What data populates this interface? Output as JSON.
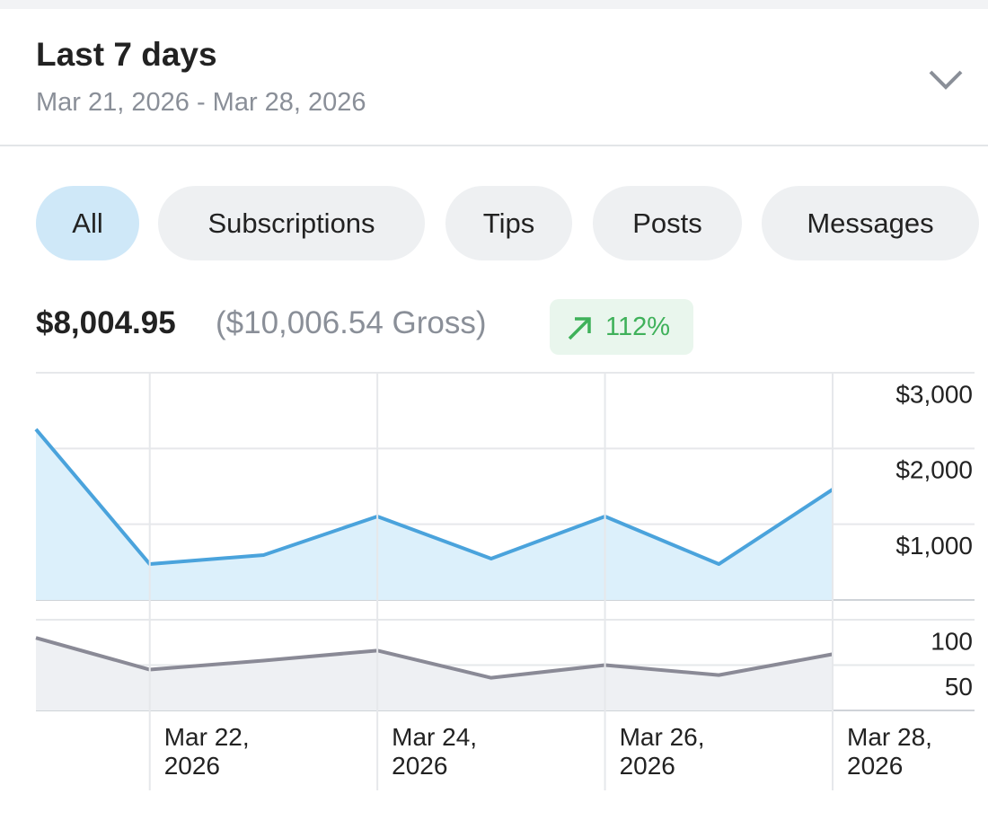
{
  "header": {
    "title": "Last 7 days",
    "date_range": "Mar 21, 2026 - Mar 28, 2026"
  },
  "tabs": [
    "All",
    "Subscriptions",
    "Tips",
    "Posts",
    "Messages"
  ],
  "active_tab": 0,
  "summary": {
    "net": "$8,004.95",
    "gross": "($10,006.54 Gross)",
    "change": "112%"
  },
  "chart_data": [
    {
      "type": "area",
      "color": "#4aa3dc",
      "values": [
        2254,
        474,
        593,
        1103,
        546,
        1103,
        474,
        1459
      ],
      "ylim": [
        0,
        3000
      ],
      "yticks": [
        {
          "value": 1000,
          "label": "$1,000"
        },
        {
          "value": 2000,
          "label": "$2,000"
        },
        {
          "value": 3000,
          "label": "$3,000"
        }
      ]
    },
    {
      "type": "area",
      "color": "#8a8a96",
      "categories": [
        null,
        "Mar 22, 2026",
        null,
        "Mar 24, 2026",
        null,
        "Mar 26, 2026",
        null,
        "Mar 28, 2026"
      ],
      "values": [
        80,
        45,
        55,
        66,
        36,
        50,
        39,
        62
      ],
      "ylim": [
        0,
        100
      ],
      "yticks": [
        50,
        100
      ]
    }
  ]
}
